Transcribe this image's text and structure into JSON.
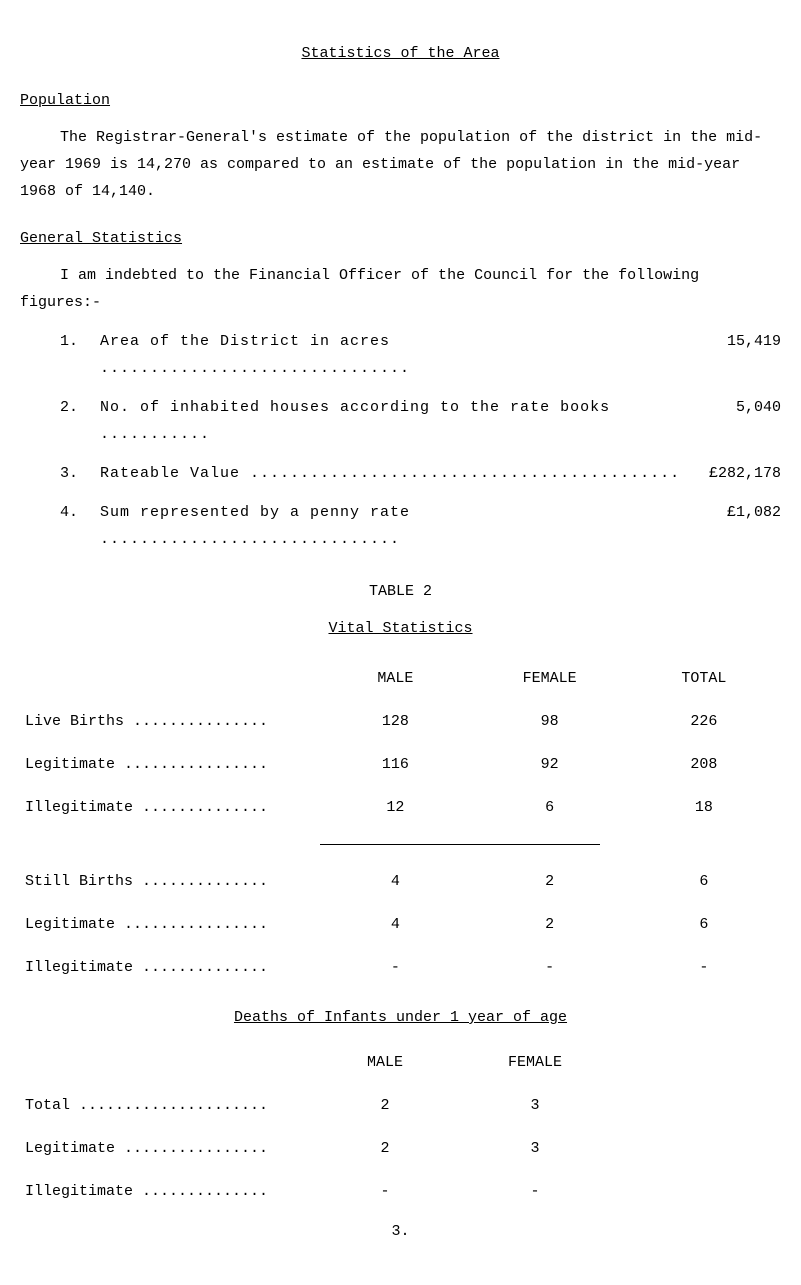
{
  "title": "Statistics of the Area",
  "sections": {
    "population": {
      "header": "Population",
      "para": "The Registrar-General's estimate of the population of the district in the mid-year 1969 is 14,270 as compared to an estimate of the population in the mid-year 1968 of 14,140."
    },
    "general_stats": {
      "header": "General Statistics",
      "intro": "I am indebted to the Financial Officer of the Council for the following figures:-",
      "items": [
        {
          "num": "1.",
          "text": "Area of the District in acres ",
          "dots": "...............................",
          "value": "15,419"
        },
        {
          "num": "2.",
          "text": "No. of inhabited houses according to the rate books ",
          "dots": "...........",
          "value": "5,040"
        },
        {
          "num": "3.",
          "text": "Rateable Value ",
          "dots": "...........................................",
          "value": "£282,178"
        },
        {
          "num": "4.",
          "text": "Sum represented by a penny rate ",
          "dots": "..............................",
          "value": "£1,082"
        }
      ]
    }
  },
  "table2": {
    "title": "TABLE 2",
    "subtitle": "Vital Statistics",
    "headers": {
      "male": "MALE",
      "female": "FEMALE",
      "total": "TOTAL"
    },
    "rows_a": [
      {
        "label": "Live Births ...............",
        "male": "128",
        "female": "98",
        "total": "226"
      },
      {
        "label": "Legitimate ................",
        "male": "116",
        "female": "92",
        "total": "208"
      },
      {
        "label": "Illegitimate ..............",
        "male": "12",
        "female": "6",
        "total": "18"
      }
    ],
    "rows_b": [
      {
        "label": "Still Births ..............",
        "male": "4",
        "female": "2",
        "total": "6"
      },
      {
        "label": "Legitimate ................",
        "male": "4",
        "female": "2",
        "total": "6"
      },
      {
        "label": "Illegitimate ..............",
        "male": "-",
        "female": "-",
        "total": "-"
      }
    ]
  },
  "deaths": {
    "header": "Deaths of Infants under 1 year of age",
    "col_headers": {
      "male": "MALE",
      "female": "FEMALE"
    },
    "rows": [
      {
        "label": "Total .....................",
        "male": "2",
        "female": "3"
      },
      {
        "label": "Legitimate ................",
        "male": "2",
        "female": "3"
      },
      {
        "label": "Illegitimate ..............",
        "male": "-",
        "female": "-"
      }
    ]
  },
  "page_number": "3."
}
